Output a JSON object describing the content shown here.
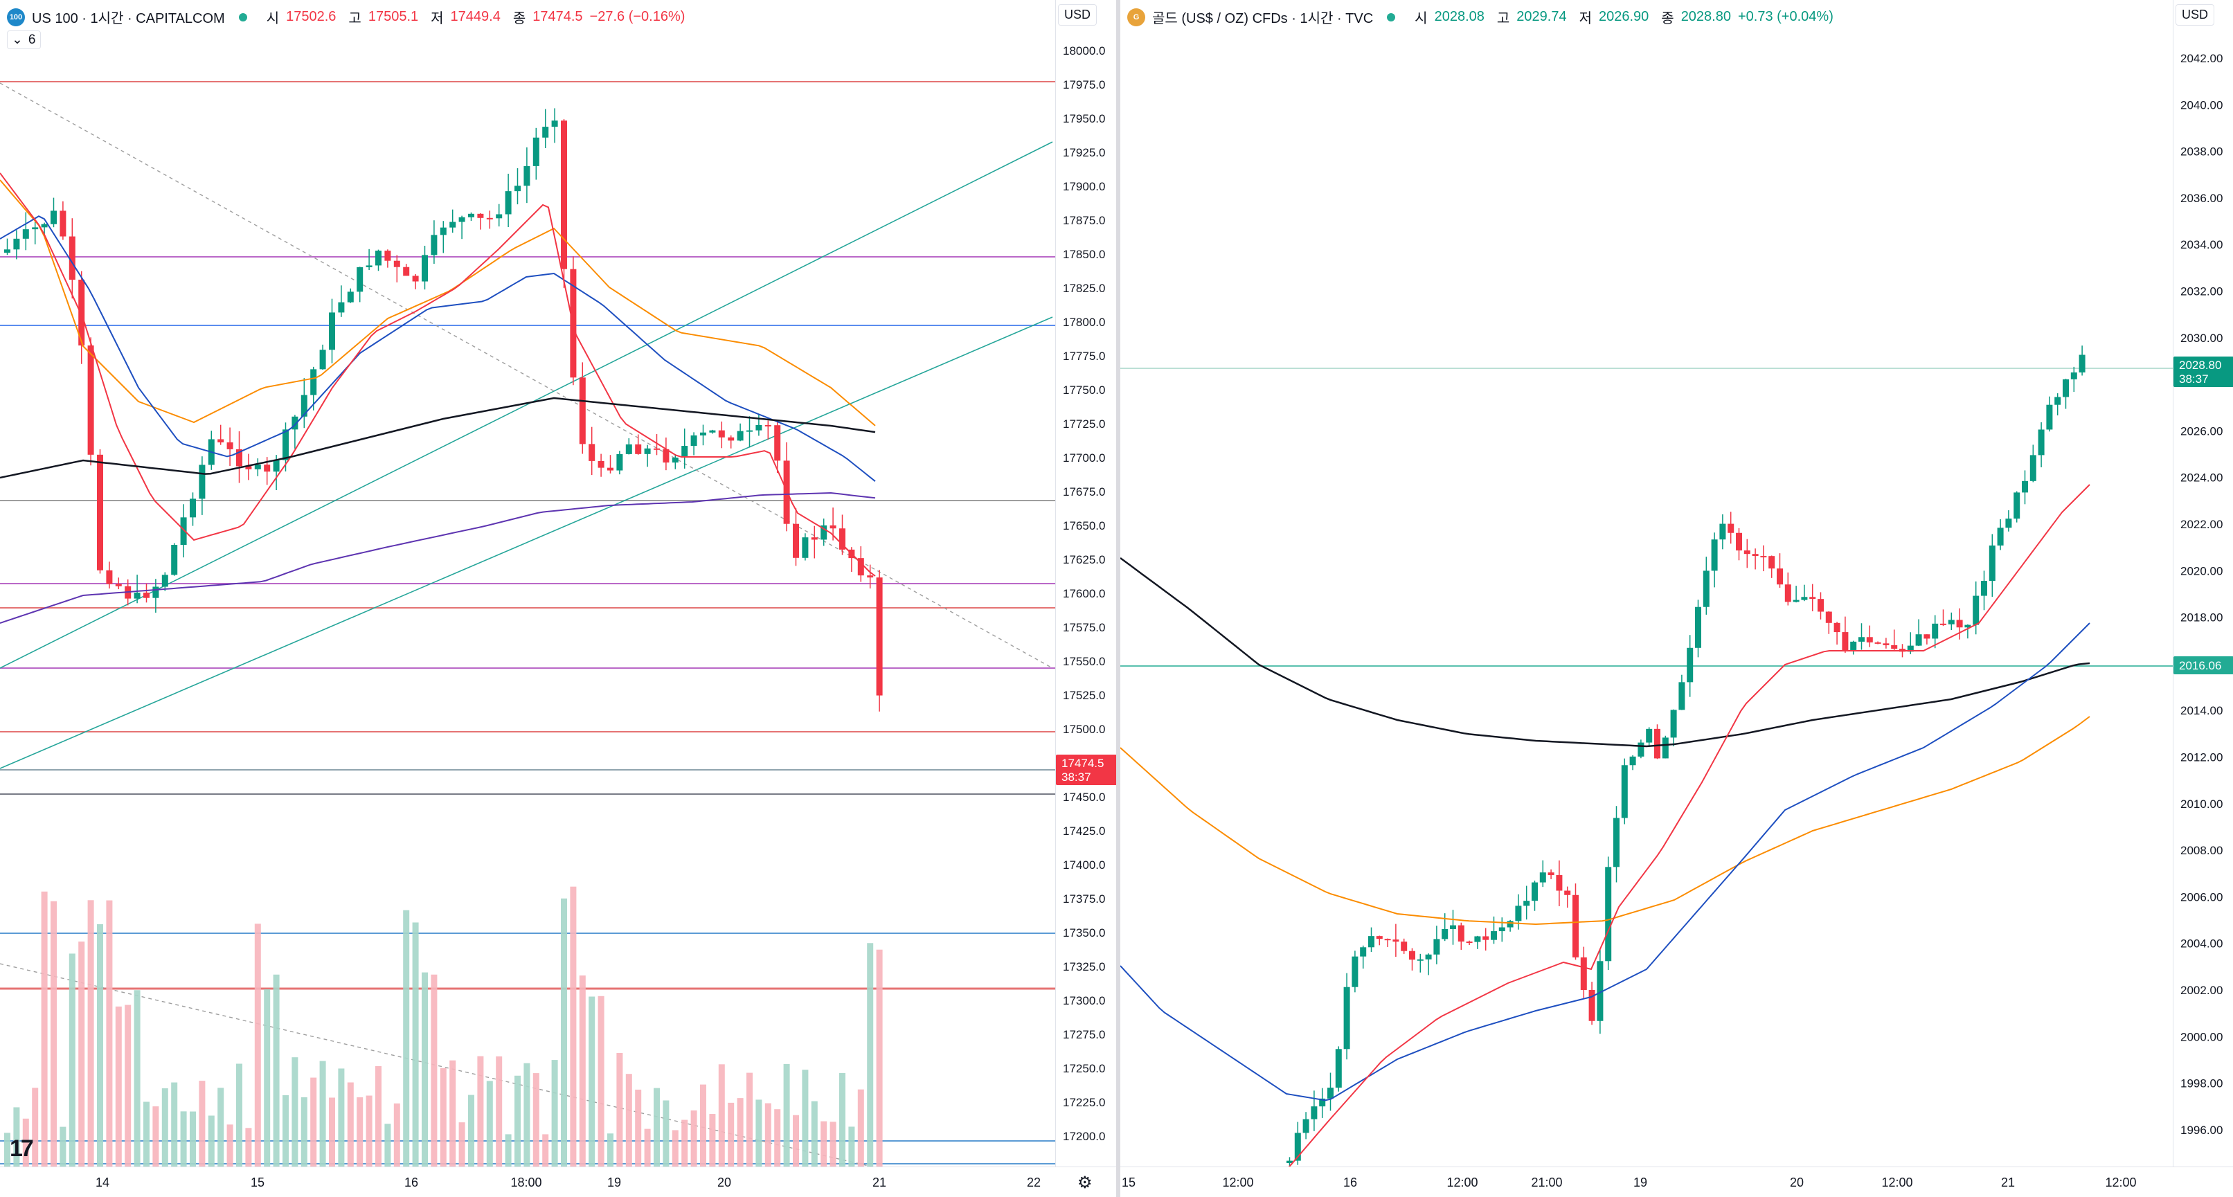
{
  "left": {
    "symbol_icon": "100",
    "symbol_title": "US 100 · 1시간 · CAPITALCOM",
    "ohlc": {
      "o_label": "시",
      "o": "17502.6",
      "h_label": "고",
      "h": "17505.1",
      "l_label": "저",
      "l": "17449.4",
      "c_label": "종",
      "c": "17474.5",
      "change": "−27.6 (−0.16%)"
    },
    "indicator_toggle": "6",
    "currency": "USD",
    "price_label": "17474.5",
    "countdown": "38:37",
    "y_ticks": [
      "18000.0",
      "17975.0",
      "17950.0",
      "17925.0",
      "17900.0",
      "17875.0",
      "17850.0",
      "17825.0",
      "17800.0",
      "17775.0",
      "17750.0",
      "17725.0",
      "17700.0",
      "17675.0",
      "17650.0",
      "17625.0",
      "17600.0",
      "17575.0",
      "17550.0",
      "17525.0",
      "17500.0",
      "17450.0",
      "17425.0",
      "17400.0",
      "17375.0",
      "17350.0",
      "17325.0",
      "17300.0",
      "17275.0",
      "17250.0",
      "17225.0",
      "17200.0"
    ],
    "x_ticks": [
      "14",
      "15",
      "16",
      "18:00",
      "19",
      "20",
      "21",
      "22"
    ]
  },
  "right": {
    "symbol_icon": "G",
    "symbol_title": "골드 (US$ / OZ) CFDs · 1시간 · TVC",
    "ohlc": {
      "o_label": "시",
      "o": "2028.08",
      "h_label": "고",
      "h": "2029.74",
      "l_label": "저",
      "l": "2026.90",
      "c_label": "종",
      "c": "2028.80",
      "change": "+0.73 (+0.04%)"
    },
    "currency": "USD",
    "price_label": "2028.80",
    "countdown": "38:37",
    "level_label": "2016.06",
    "y_ticks": [
      "2042.00",
      "2040.00",
      "2038.00",
      "2036.00",
      "2034.00",
      "2032.00",
      "2030.00",
      "2026.00",
      "2024.00",
      "2022.00",
      "2020.00",
      "2018.00",
      "2014.00",
      "2012.00",
      "2010.00",
      "2008.00",
      "2006.00",
      "2004.00",
      "2002.00",
      "2000.00",
      "1998.00",
      "1996.00"
    ],
    "x_ticks": [
      "15",
      "12:00",
      "16",
      "12:00",
      "21:00",
      "19",
      "20",
      "12:00",
      "21",
      "12:00"
    ]
  },
  "colors": {
    "up": "#089981",
    "down": "#f23645",
    "up_vol": "#a5d6c9",
    "down_vol": "#f7b4bb",
    "accent": "#2962ff",
    "gold_icon": "#e8a33a",
    "nq_icon": "#1e88c9"
  },
  "logo": "TradingView",
  "settings_icon": "gear-icon"
}
